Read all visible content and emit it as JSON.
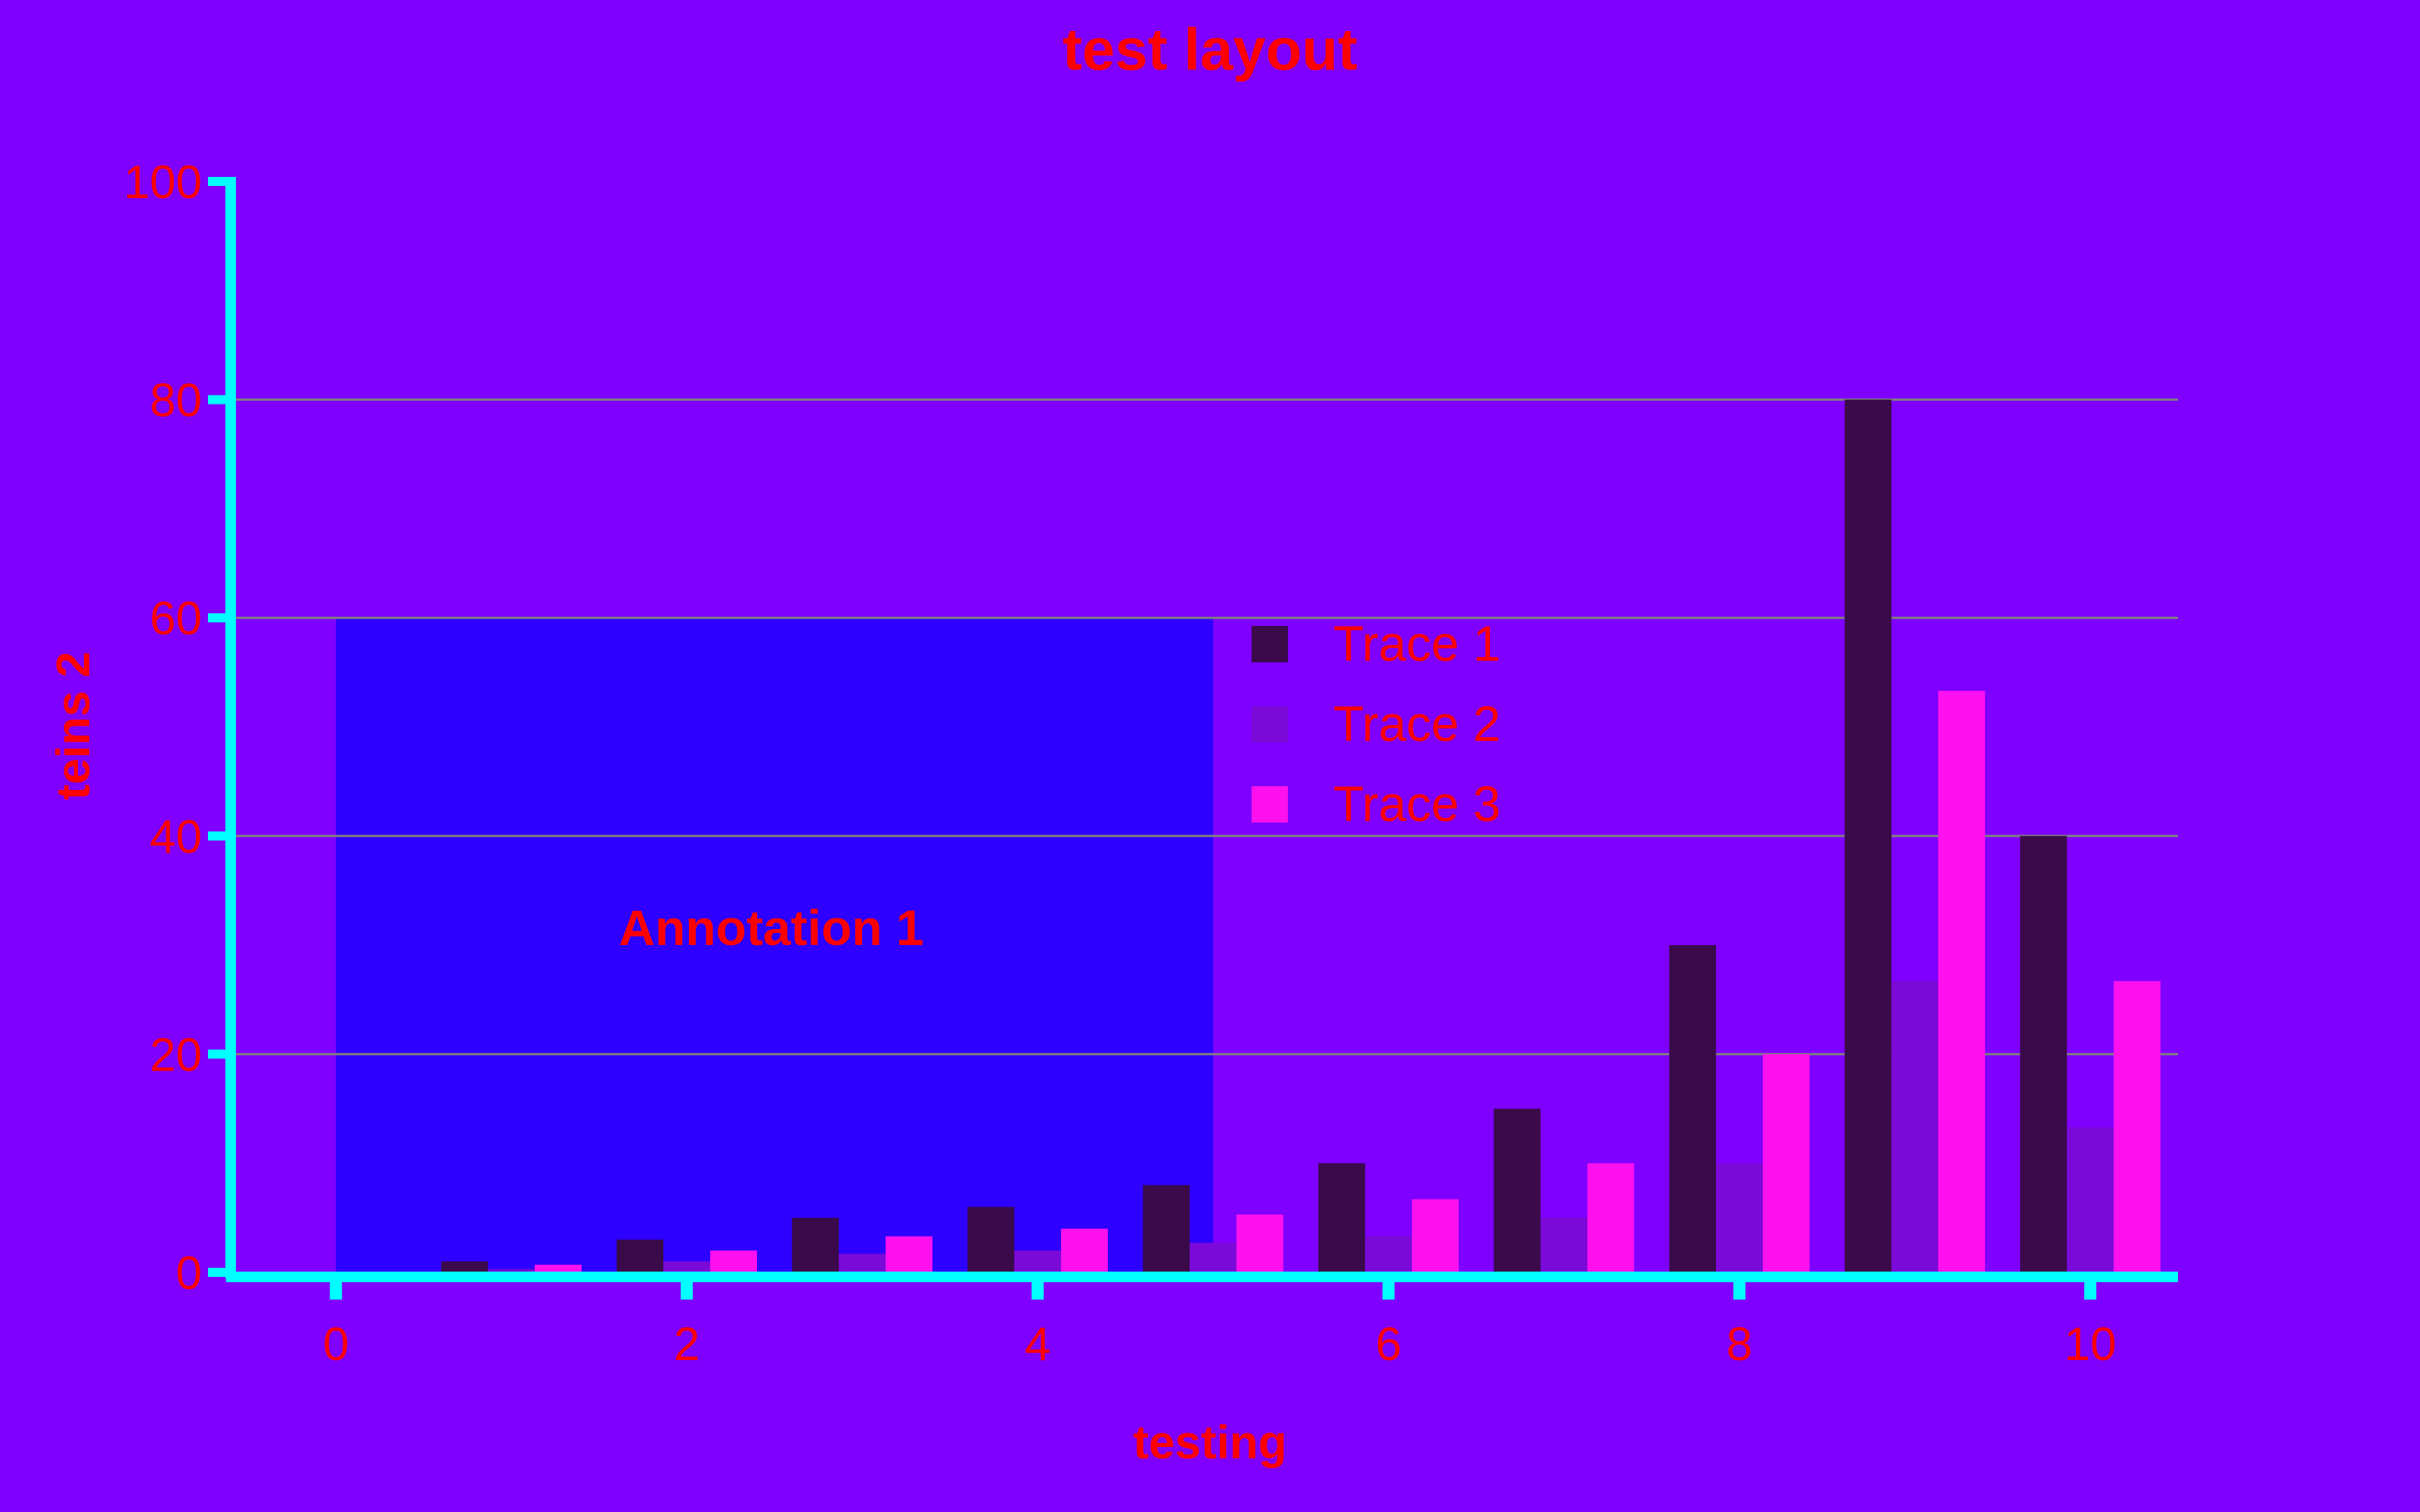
{
  "colors": {
    "background": "#7f00ff",
    "text": "#ff0000",
    "axis": "#00ffff",
    "grid": "#7f7f7f",
    "annotation_box": "#2e00ff"
  },
  "chart_data": {
    "type": "bar",
    "title": "test layout",
    "xlabel": "testing",
    "ylabel": "teins 2",
    "xlim": [
      -0.6,
      10.5
    ],
    "ylim": [
      0,
      100
    ],
    "x_ticks": [
      0,
      2,
      4,
      6,
      8,
      10
    ],
    "y_ticks": [
      0,
      20,
      40,
      60,
      80,
      100
    ],
    "grid": "horizontal",
    "legend_position": "center",
    "x": [
      0,
      1,
      2,
      3,
      4,
      5,
      6,
      7,
      8,
      9,
      10
    ],
    "series": [
      {
        "name": "Trace 1",
        "color": "#3a0a4a",
        "values": [
          0,
          1,
          3,
          5,
          6,
          8,
          10,
          15,
          30,
          80,
          40
        ]
      },
      {
        "name": "Trace 2",
        "color": "#7b0ad8",
        "values": [
          0,
          0.3,
          1,
          1.7,
          2,
          2.7,
          3.3,
          5,
          10,
          26.7,
          13.3
        ]
      },
      {
        "name": "Trace 3",
        "color": "#ff10ee",
        "values": [
          0,
          0.7,
          2,
          3.3,
          4,
          5.3,
          6.7,
          10,
          20,
          53.3,
          26.7
        ]
      }
    ],
    "annotation": {
      "text": "Annotation 1",
      "x_range": [
        0,
        5
      ],
      "y_range": [
        0,
        60
      ]
    }
  }
}
